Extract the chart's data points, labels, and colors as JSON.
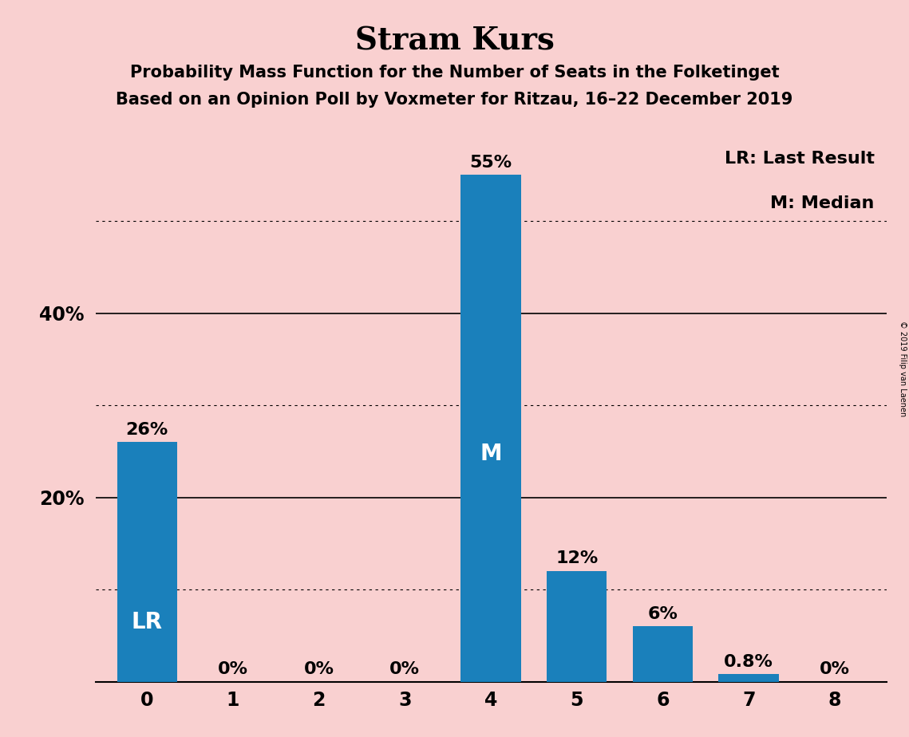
{
  "title": "Stram Kurs",
  "subtitle1": "Probability Mass Function for the Number of Seats in the Folketinget",
  "subtitle2": "Based on an Opinion Poll by Voxmeter for Ritzau, 16–22 December 2019",
  "copyright": "© 2019 Filip van Laenen",
  "categories": [
    0,
    1,
    2,
    3,
    4,
    5,
    6,
    7,
    8
  ],
  "values": [
    26,
    0,
    0,
    0,
    55,
    12,
    6,
    0.8,
    0
  ],
  "bar_color": "#1a80bb",
  "background_color": "#f9d0d0",
  "bar_labels": [
    "26%",
    "0%",
    "0%",
    "0%",
    "55%",
    "12%",
    "6%",
    "0.8%",
    "0%"
  ],
  "bar_label_inside": [
    "LR",
    "",
    "",
    "",
    "M",
    "",
    "",
    "",
    ""
  ],
  "ylim": [
    0,
    60
  ],
  "solid_gridlines": [
    20,
    40
  ],
  "dotted_gridlines": [
    10,
    30,
    50
  ],
  "legend_lr": "LR: Last Result",
  "legend_m": "M: Median",
  "title_fontsize": 28,
  "subtitle_fontsize": 15,
  "axis_tick_fontsize": 17,
  "bar_label_fontsize": 16,
  "inside_label_fontsize": 20,
  "legend_fontsize": 16
}
